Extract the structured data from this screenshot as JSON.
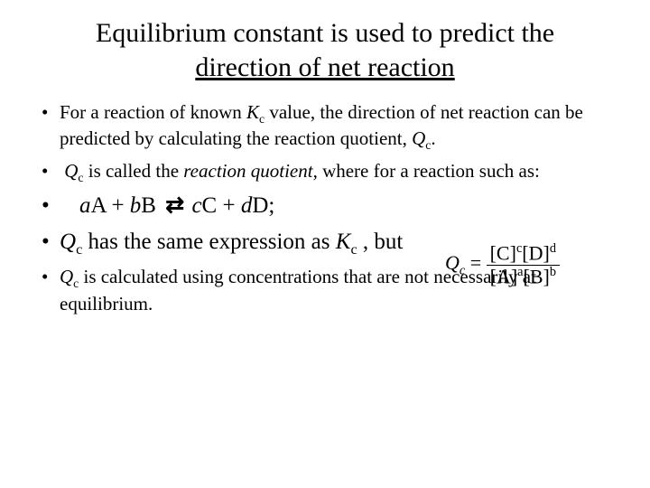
{
  "title": {
    "line1": "Equilibrium constant is used to predict the",
    "line2_underlined": "direction of net reaction",
    "fontsize": 30,
    "color": "#000000",
    "align": "center"
  },
  "bullets": {
    "b1": {
      "pre": "For a reaction of known ",
      "k": "K",
      "ksub": "c",
      "mid": " value, the direction of net reaction can be predicted by calculating the reaction quotient, ",
      "q": "Q",
      "qsub": "c",
      "post": "."
    },
    "b2": {
      "q": "Q",
      "qsub": "c",
      "mid1": " is called the ",
      "term": "reaction quotient",
      "mid2": ", where for a reaction such as:"
    },
    "b3": {
      "a": "a",
      "A": "A",
      "plus1": " + ",
      "b": "b",
      "B": "B",
      "arrow": "⇄",
      "c": "c",
      "C": "C",
      "plus2": " + ",
      "d": "d",
      "D": "D",
      "semi": ";"
    },
    "b4": {
      "q": "Q",
      "qsub": "c",
      "mid": " has the same expression as ",
      "k": "K",
      "ksub": "c",
      "post": " , but"
    },
    "b5": {
      "q": "Q",
      "qsub": "c",
      "post": " is calculated using concentrations that are not necessarily at equilibrium."
    }
  },
  "formula": {
    "lhs_Q": "Q",
    "lhs_sub": "c",
    "eq": " = ",
    "num_C": "[C]",
    "num_c": "c",
    "num_D": "[D]",
    "num_d": "d",
    "den_A": "[A]",
    "den_a": "a",
    "den_B": "[B]",
    "den_b": "b"
  },
  "style": {
    "body_font": "Times New Roman",
    "small_fontsize": 21,
    "med_fontsize": 25,
    "text_color": "#000000",
    "background": "#ffffff",
    "slide_width": 720,
    "slide_height": 540
  }
}
